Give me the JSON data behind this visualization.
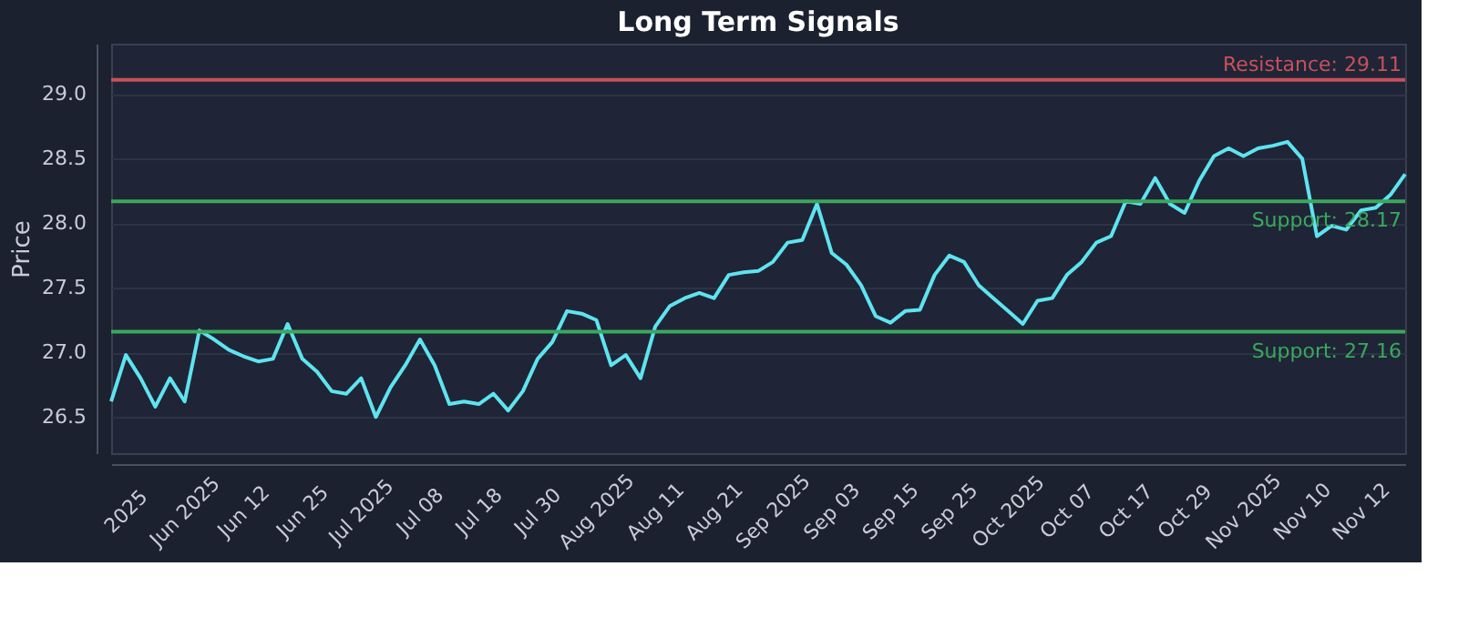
{
  "chart_data": {
    "type": "line",
    "title": "Long Term Signals",
    "ylabel": "Price",
    "categories": [
      null,
      "2025",
      null,
      null,
      null,
      "Jun 2025",
      null,
      null,
      null,
      "Jun 12",
      null,
      null,
      null,
      "Jun 25",
      null,
      null,
      null,
      "Jul 2025",
      null,
      null,
      null,
      "Jul 08",
      null,
      null,
      null,
      "Jul 18",
      null,
      null,
      null,
      "Jul 30",
      null,
      null,
      null,
      "Aug 2025",
      null,
      null,
      null,
      "Aug 11",
      null,
      null,
      null,
      "Aug 21",
      null,
      null,
      null,
      "Sep 2025",
      null,
      null,
      null,
      "Sep 03",
      null,
      null,
      null,
      "Sep 15",
      null,
      null,
      null,
      "Sep 25",
      null,
      null,
      null,
      "Oct 2025",
      null,
      null,
      null,
      "Oct 07",
      null,
      null,
      null,
      "Oct 17",
      null,
      null,
      null,
      "Oct 29",
      null,
      null,
      null,
      "Nov 2025",
      null,
      null,
      null,
      "Nov 10",
      null,
      null,
      null,
      "Nov 12",
      null,
      null,
      null
    ],
    "series": [
      {
        "color": "#5fe3f0",
        "values": [
          26.62,
          26.98,
          26.8,
          26.58,
          26.8,
          26.62,
          27.17,
          27.1,
          27.02,
          26.97,
          26.93,
          26.95,
          27.22,
          26.95,
          26.85,
          26.7,
          26.68,
          26.8,
          26.5,
          26.73,
          26.9,
          27.1,
          26.9,
          26.6,
          26.62,
          26.6,
          26.68,
          26.55,
          26.7,
          26.95,
          27.08,
          27.32,
          27.3,
          27.25,
          26.9,
          26.98,
          26.8,
          27.2,
          27.36,
          27.42,
          27.46,
          27.42,
          27.6,
          27.62,
          27.63,
          27.7,
          27.85,
          27.87,
          28.15,
          27.77,
          27.68,
          27.52,
          27.28,
          27.23,
          27.32,
          27.33,
          27.6,
          27.75,
          27.7,
          27.52,
          27.42,
          27.32,
          27.22,
          27.4,
          27.42,
          27.6,
          27.7,
          27.85,
          27.9,
          28.17,
          28.15,
          28.35,
          28.15,
          28.08,
          28.33,
          28.52,
          28.58,
          28.52,
          28.58,
          28.6,
          28.63,
          28.5,
          27.9,
          27.98,
          27.95,
          28.1,
          28.12,
          28.22,
          28.38
        ]
      }
    ],
    "ylim": [
      26.22,
      29.39
    ],
    "yticks": [
      26.5,
      {
        "value": 27,
        "label": "27.0"
      },
      27.5,
      {
        "value": 28,
        "label": "28.0"
      },
      28.5,
      {
        "value": 29,
        "label": "29.0"
      }
    ],
    "grid": "y",
    "line_style": "solid",
    "marker": "none",
    "ref_lines": [
      {
        "axis": "y",
        "value": 29.11,
        "label": "Resistance: 29.11",
        "color": "#c9505c"
      },
      {
        "axis": "y",
        "value": 28.17,
        "label": "Support: 28.17",
        "color": "#3aa85e"
      },
      {
        "axis": "y",
        "value": 27.16,
        "label": "Support: 27.16",
        "color": "#3aa85e"
      }
    ]
  }
}
